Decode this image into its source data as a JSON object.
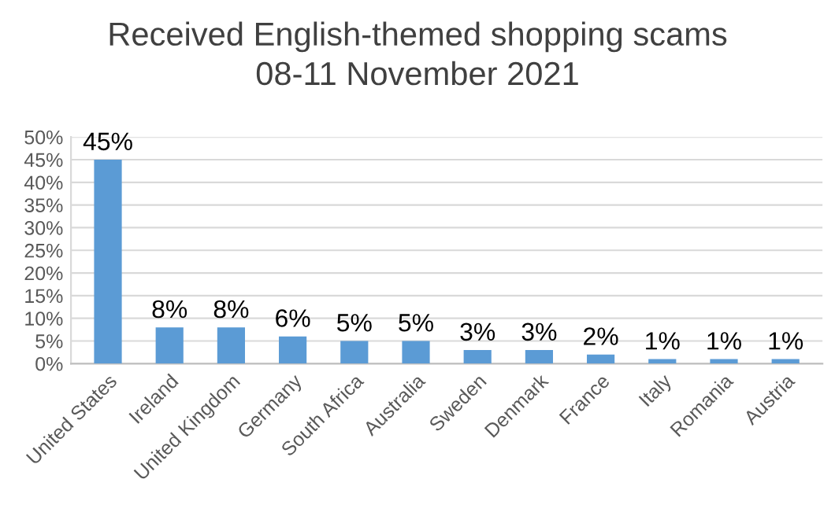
{
  "chart_data": {
    "type": "bar",
    "title": "Received English-themed shopping scams",
    "subtitle": "08-11 November 2021",
    "categories": [
      "United States",
      "Ireland",
      "United Kingdom",
      "Germany",
      "South Africa",
      "Australia",
      "Sweden",
      "Denmark",
      "France",
      "Italy",
      "Romania",
      "Austria"
    ],
    "values": [
      45,
      8,
      8,
      6,
      5,
      5,
      3,
      3,
      2,
      1,
      1,
      1
    ],
    "value_labels": [
      "45%",
      "8%",
      "8%",
      "6%",
      "5%",
      "5%",
      "3%",
      "3%",
      "2%",
      "1%",
      "1%",
      "1%"
    ],
    "color": "#5b9bd5",
    "ylim": [
      0,
      50
    ],
    "yticks": [
      {
        "value": 0,
        "label": "0%"
      },
      {
        "value": 5,
        "label": "5%"
      },
      {
        "value": 10,
        "label": "10%"
      },
      {
        "value": 15,
        "label": "15%"
      },
      {
        "value": 20,
        "label": "20%"
      },
      {
        "value": 25,
        "label": "25%"
      },
      {
        "value": 30,
        "label": "30%"
      },
      {
        "value": 35,
        "label": "35%"
      },
      {
        "value": 40,
        "label": "40%"
      },
      {
        "value": 45,
        "label": "45%"
      },
      {
        "value": 50,
        "label": "50%"
      }
    ],
    "grid": "y",
    "legend": false
  }
}
